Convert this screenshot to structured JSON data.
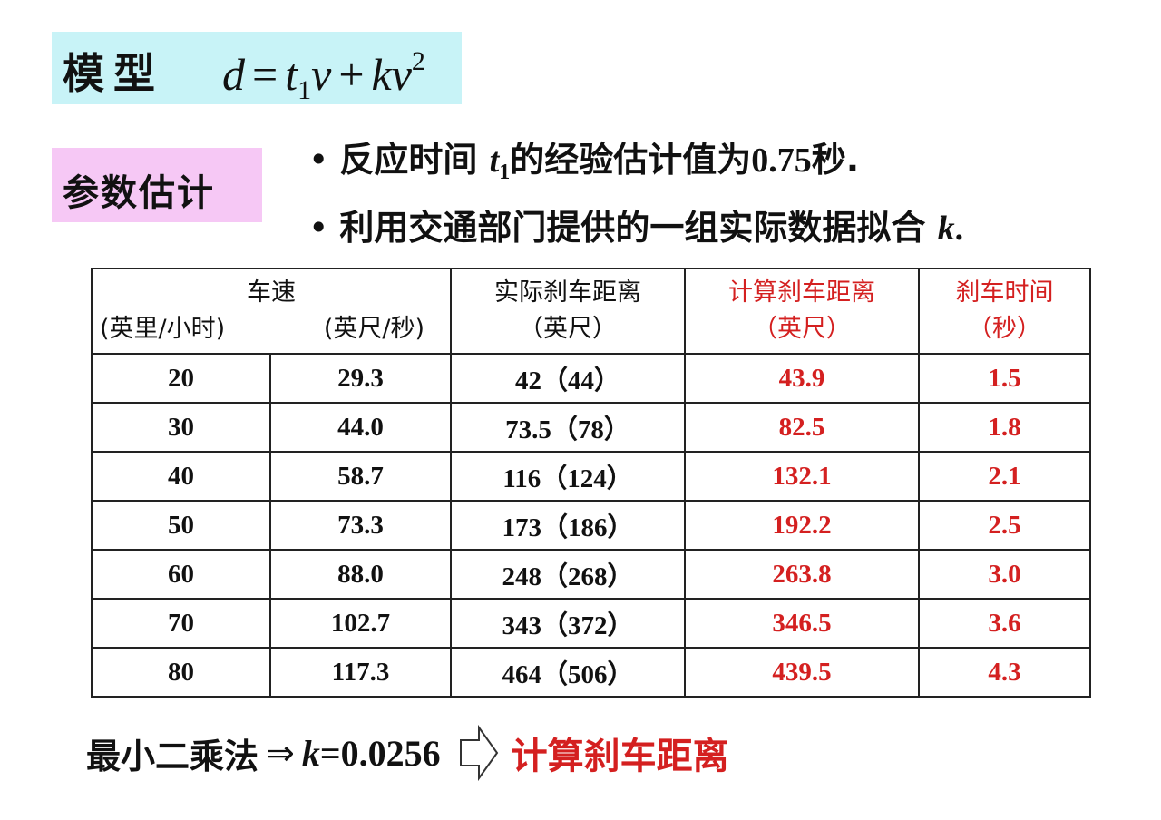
{
  "model": {
    "label": "模型",
    "formula": {
      "d": "d",
      "eq": "=",
      "t": "t",
      "t_sub": "1",
      "v1": "v",
      "plus": "+",
      "k": "k",
      "v2": "v",
      "exp": "2"
    }
  },
  "param": {
    "label": "参数估计",
    "bullet1": {
      "dot": "•",
      "pre": "反应时间",
      "var": "t",
      "sub": "1",
      "mid": "的经验估计值为",
      "num": "0.75",
      "post": "秒."
    },
    "bullet2": {
      "dot": "•",
      "pre": "利用交通部门提供的一组实际数据拟合",
      "var": "k",
      "post": "."
    }
  },
  "table": {
    "headers": {
      "speed": "车速",
      "mph": "(英里/小时)",
      "fps": "(英尺/秒)",
      "actual_line1": "实际刹车距离",
      "actual_line2": "（英尺）",
      "calc_line1": "计算刹车距离",
      "calc_line2": "（英尺）",
      "time_line1": "刹车时间",
      "time_line2": "（秒）"
    },
    "rows": [
      {
        "mph": "20",
        "fps": "29.3",
        "actual": "42（44）",
        "calc": "43.9",
        "time": "1.5"
      },
      {
        "mph": "30",
        "fps": "44.0",
        "actual": "73.5（78）",
        "calc": "82.5",
        "time": "1.8"
      },
      {
        "mph": "40",
        "fps": "58.7",
        "actual": "116（124）",
        "calc": "132.1",
        "time": "2.1"
      },
      {
        "mph": "50",
        "fps": "73.3",
        "actual": "173（186）",
        "calc": "192.2",
        "time": "2.5"
      },
      {
        "mph": "60",
        "fps": "88.0",
        "actual": "248（268）",
        "calc": "263.8",
        "time": "3.0"
      },
      {
        "mph": "70",
        "fps": "102.7",
        "actual": "343（372）",
        "calc": "346.5",
        "time": "3.6"
      },
      {
        "mph": "80",
        "fps": "117.3",
        "actual": "464（506）",
        "calc": "439.5",
        "time": "4.3"
      }
    ]
  },
  "footer": {
    "method": "最小二乘法",
    "implies": "⇒",
    "k_var": "k",
    "k_value": "=0.0256",
    "result": "计算刹车距离"
  },
  "colors": {
    "model_bg": "#c8f3f7",
    "param_bg": "#f6c8f5",
    "red": "#d42020"
  },
  "icons": {
    "hollow_arrow": "hollow-right-arrow-icon"
  }
}
